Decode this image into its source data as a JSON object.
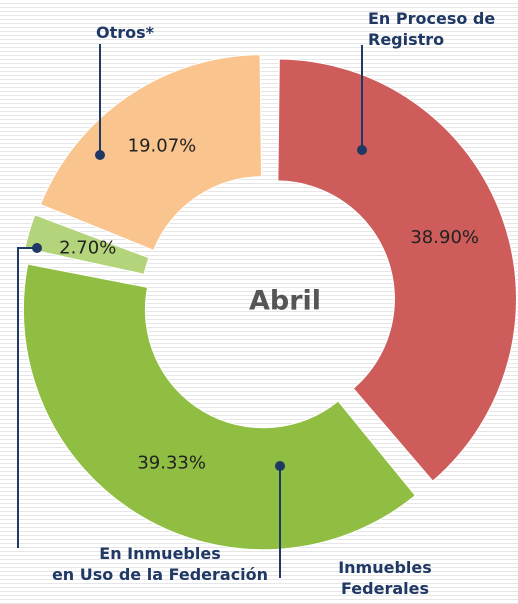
{
  "chart_data": {
    "type": "donut",
    "center_label": "Abril",
    "categories": [
      "En Proceso de\nRegistro",
      "Inmuebles\nFederales",
      "En Inmuebles\nen Uso de la Federación",
      "Otros*"
    ],
    "values": [
      38.9,
      39.33,
      2.7,
      19.07
    ],
    "value_labels": [
      "38.90%",
      "39.33%",
      "2.70%",
      "19.07%"
    ],
    "colors": [
      "#cd5c5a",
      "#8fbe43",
      "#b3d47a",
      "#fac48e"
    ]
  }
}
